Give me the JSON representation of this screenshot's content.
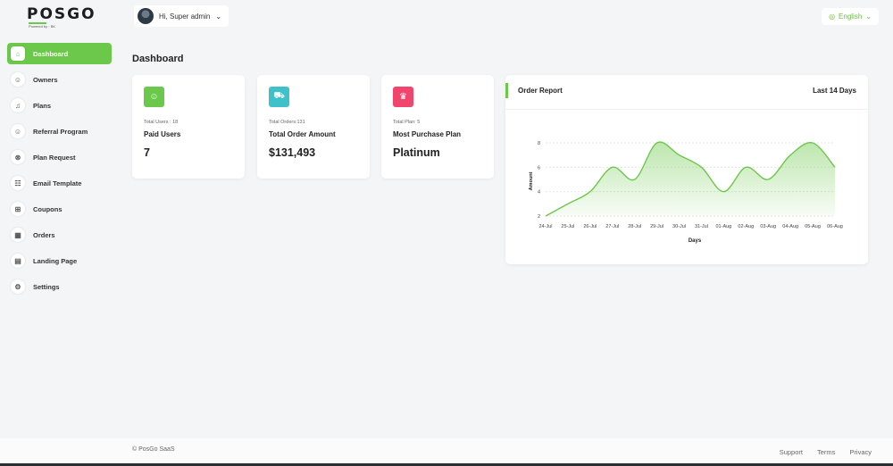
{
  "brand": {
    "logo_main": "POSGO",
    "logo_sub": "Powered by ◦ BK"
  },
  "header": {
    "greeting": "Hi, Super admin",
    "language": "English"
  },
  "sidebar": {
    "items": [
      {
        "label": "Dashboard",
        "icon": "home-icon"
      },
      {
        "label": "Owners",
        "icon": "users-icon"
      },
      {
        "label": "Plans",
        "icon": "bell-icon"
      },
      {
        "label": "Referral Program",
        "icon": "referral-icon"
      },
      {
        "label": "Plan Request",
        "icon": "circle-icon"
      },
      {
        "label": "Email Template",
        "icon": "template-icon"
      },
      {
        "label": "Coupons",
        "icon": "gift-icon"
      },
      {
        "label": "Orders",
        "icon": "calendar-icon"
      },
      {
        "label": "Landing Page",
        "icon": "page-icon"
      },
      {
        "label": "Settings",
        "icon": "gear-icon"
      }
    ]
  },
  "page": {
    "title": "Dashboard"
  },
  "stats": [
    {
      "small": "Total Users : 18",
      "label": "Paid Users",
      "value": "7",
      "color": "#6cc84a",
      "icon": "users-icon"
    },
    {
      "small": "Total Orders:131",
      "label": "Total Order Amount",
      "value": "$131,493",
      "color": "#3fc1c9",
      "icon": "cart-icon"
    },
    {
      "small": "Total Plan: 5",
      "label": "Most Purchase Plan",
      "value": "Platinum",
      "color": "#f0466e",
      "icon": "trophy-icon"
    }
  ],
  "report": {
    "title": "Order Report",
    "range": "Last 14 Days"
  },
  "chart_data": {
    "type": "area",
    "categories": [
      "24-Jul",
      "25-Jul",
      "26-Jul",
      "27-Jul",
      "28-Jul",
      "29-Jul",
      "30-Jul",
      "31-Jul",
      "01-Aug",
      "02-Aug",
      "03-Aug",
      "04-Aug",
      "05-Aug",
      "06-Aug"
    ],
    "series": [
      {
        "name": "",
        "values": [
          2,
          3,
          4,
          6,
          5,
          8,
          7,
          6,
          4,
          6,
          5,
          7,
          8,
          6
        ]
      }
    ],
    "xlabel": "Days",
    "ylabel": "Amount",
    "yticks": [
      2,
      4,
      6,
      8
    ],
    "ylim": [
      2,
      8
    ],
    "grid": true,
    "color": "#6cc84a"
  },
  "footer": {
    "copyright": "© PosGo SaaS",
    "links": [
      "Support",
      "Terms",
      "Privacy"
    ]
  }
}
